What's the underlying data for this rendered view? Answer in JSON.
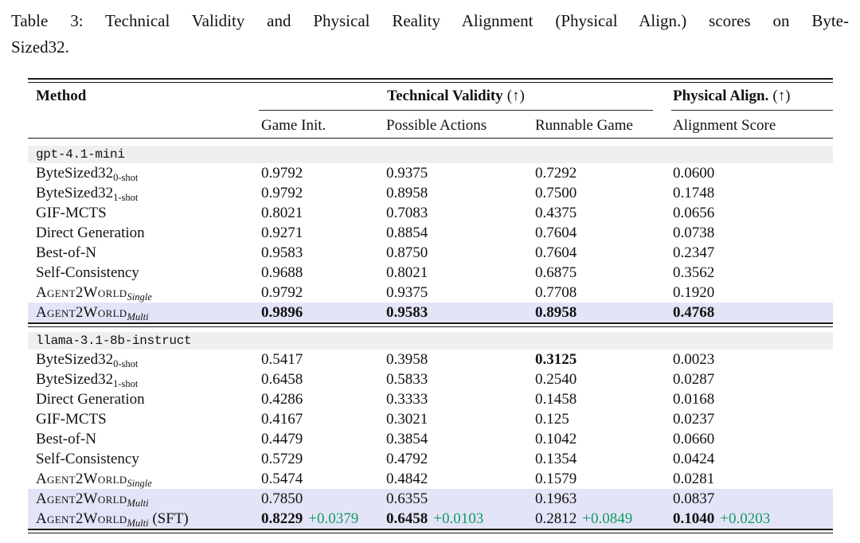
{
  "caption": {
    "line1": "Table 3: Technical Validity and Physical Reality Alignment (Physical Align.)  scores on Byte-",
    "line2": "Sized32."
  },
  "table": {
    "headers": {
      "method": "Method",
      "technical_validity": "Technical Validity",
      "physical_align": "Physical Align.",
      "arrow": "(↑)",
      "subheaders": [
        "Game Init.",
        "Possible Actions",
        "Runnable Game",
        "Alignment Score"
      ]
    },
    "colors": {
      "highlight_row": "#e4e4f8",
      "model_row_bg": "#efefef",
      "delta_green": "#119c64"
    },
    "sections": [
      {
        "model": "gpt-4.1-mini",
        "rows": [
          {
            "base": "ByteSized32",
            "sub": "0-shot",
            "italic_sub": false,
            "smallcaps": false,
            "suffix": "",
            "highlight": false,
            "cells": [
              {
                "v": "0.9792"
              },
              {
                "v": "0.9375"
              },
              {
                "v": "0.7292"
              },
              {
                "v": "0.0600"
              }
            ]
          },
          {
            "base": "ByteSized32",
            "sub": "1-shot",
            "italic_sub": false,
            "smallcaps": false,
            "suffix": "",
            "highlight": false,
            "cells": [
              {
                "v": "0.9792"
              },
              {
                "v": "0.8958"
              },
              {
                "v": "0.7500"
              },
              {
                "v": "0.1748"
              }
            ]
          },
          {
            "base": "GIF-MCTS",
            "sub": "",
            "italic_sub": false,
            "smallcaps": false,
            "suffix": "",
            "highlight": false,
            "cells": [
              {
                "v": "0.8021"
              },
              {
                "v": "0.7083"
              },
              {
                "v": "0.4375"
              },
              {
                "v": "0.0656"
              }
            ]
          },
          {
            "base": "Direct Generation",
            "sub": "",
            "italic_sub": false,
            "smallcaps": false,
            "suffix": "",
            "highlight": false,
            "cells": [
              {
                "v": "0.9271"
              },
              {
                "v": "0.8854"
              },
              {
                "v": "0.7604"
              },
              {
                "v": "0.0738"
              }
            ]
          },
          {
            "base": "Best-of-N",
            "sub": "",
            "italic_sub": false,
            "smallcaps": false,
            "suffix": "",
            "highlight": false,
            "cells": [
              {
                "v": "0.9583"
              },
              {
                "v": "0.8750"
              },
              {
                "v": "0.7604"
              },
              {
                "v": "0.2347"
              }
            ]
          },
          {
            "base": "Self-Consistency",
            "sub": "",
            "italic_sub": false,
            "smallcaps": false,
            "suffix": "",
            "highlight": false,
            "cells": [
              {
                "v": "0.9688"
              },
              {
                "v": "0.8021"
              },
              {
                "v": "0.6875"
              },
              {
                "v": "0.3562"
              }
            ]
          },
          {
            "base": "Agent2World",
            "sub": "Single",
            "italic_sub": true,
            "smallcaps": true,
            "suffix": "",
            "highlight": false,
            "cells": [
              {
                "v": "0.9792"
              },
              {
                "v": "0.9375"
              },
              {
                "v": "0.7708"
              },
              {
                "v": "0.1920"
              }
            ]
          },
          {
            "base": "Agent2World",
            "sub": "Multi",
            "italic_sub": true,
            "smallcaps": true,
            "suffix": "",
            "highlight": true,
            "cells": [
              {
                "v": "0.9896",
                "bold": true
              },
              {
                "v": "0.9583",
                "bold": true
              },
              {
                "v": "0.8958",
                "bold": true
              },
              {
                "v": "0.4768",
                "bold": true
              }
            ]
          }
        ]
      },
      {
        "model": "llama-3.1-8b-instruct",
        "rows": [
          {
            "base": "ByteSized32",
            "sub": "0-shot",
            "italic_sub": false,
            "smallcaps": false,
            "suffix": "",
            "highlight": false,
            "cells": [
              {
                "v": "0.5417"
              },
              {
                "v": "0.3958"
              },
              {
                "v": "0.3125",
                "bold": true
              },
              {
                "v": "0.0023"
              }
            ]
          },
          {
            "base": "ByteSized32",
            "sub": "1-shot",
            "italic_sub": false,
            "smallcaps": false,
            "suffix": "",
            "highlight": false,
            "cells": [
              {
                "v": "0.6458"
              },
              {
                "v": "0.5833"
              },
              {
                "v": "0.2540"
              },
              {
                "v": "0.0287"
              }
            ]
          },
          {
            "base": "Direct Generation",
            "sub": "",
            "italic_sub": false,
            "smallcaps": false,
            "suffix": "",
            "highlight": false,
            "cells": [
              {
                "v": "0.4286"
              },
              {
                "v": "0.3333"
              },
              {
                "v": "0.1458"
              },
              {
                "v": "0.0168"
              }
            ]
          },
          {
            "base": "GIF-MCTS",
            "sub": "",
            "italic_sub": false,
            "smallcaps": false,
            "suffix": "",
            "highlight": false,
            "cells": [
              {
                "v": "0.4167"
              },
              {
                "v": "0.3021"
              },
              {
                "v": "0.125"
              },
              {
                "v": "0.0237"
              }
            ]
          },
          {
            "base": "Best-of-N",
            "sub": "",
            "italic_sub": false,
            "smallcaps": false,
            "suffix": "",
            "highlight": false,
            "cells": [
              {
                "v": "0.4479"
              },
              {
                "v": "0.3854"
              },
              {
                "v": "0.1042"
              },
              {
                "v": "0.0660"
              }
            ]
          },
          {
            "base": "Self-Consistency",
            "sub": "",
            "italic_sub": false,
            "smallcaps": false,
            "suffix": "",
            "highlight": false,
            "cells": [
              {
                "v": "0.5729"
              },
              {
                "v": "0.4792"
              },
              {
                "v": "0.1354"
              },
              {
                "v": "0.0424"
              }
            ]
          },
          {
            "base": "Agent2World",
            "sub": "Single",
            "italic_sub": true,
            "smallcaps": true,
            "suffix": "",
            "highlight": false,
            "cells": [
              {
                "v": "0.5474"
              },
              {
                "v": "0.4842"
              },
              {
                "v": "0.1579"
              },
              {
                "v": "0.0281"
              }
            ]
          },
          {
            "base": "Agent2World",
            "sub": "Multi",
            "italic_sub": true,
            "smallcaps": true,
            "suffix": "",
            "highlight": true,
            "cells": [
              {
                "v": "0.7850"
              },
              {
                "v": "0.6355"
              },
              {
                "v": "0.1963"
              },
              {
                "v": "0.0837"
              }
            ]
          },
          {
            "base": "Agent2World",
            "sub": "Multi",
            "italic_sub": true,
            "smallcaps": true,
            "suffix": " (SFT)",
            "highlight": true,
            "cells": [
              {
                "v": "0.8229",
                "bold": true,
                "delta": "+0.0379"
              },
              {
                "v": "0.6458",
                "bold": true,
                "delta": "+0.0103"
              },
              {
                "v": "0.2812",
                "delta": "+0.0849"
              },
              {
                "v": "0.1040",
                "bold": true,
                "delta": "+0.0203"
              }
            ]
          }
        ]
      }
    ]
  }
}
